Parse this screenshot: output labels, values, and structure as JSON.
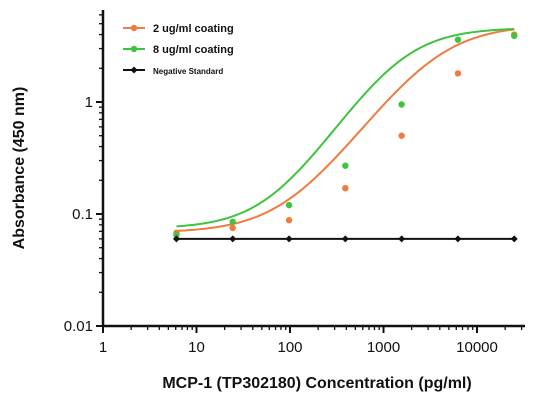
{
  "chart_data": {
    "type": "scatter",
    "xlabel": "MCP-1 (TP302180) Concentration (pg/ml)",
    "ylabel": "Absorbance (450 nm)",
    "xscale": "log",
    "yscale": "log",
    "xlim": [
      1,
      30000
    ],
    "ylim": [
      0.01,
      6
    ],
    "x_ticks": [
      1,
      10,
      100,
      1000,
      10000
    ],
    "x_tick_labels": [
      "1",
      "10",
      "100",
      "1000",
      "10000"
    ],
    "y_ticks": [
      0.01,
      0.1,
      1
    ],
    "y_tick_labels": [
      "0.01",
      "0.1",
      "1"
    ],
    "legend_position": "top-left",
    "series": [
      {
        "name": "2 ug/ml coating",
        "color": "#f07b3f",
        "marker": "dot",
        "points": [
          {
            "x": 6.1,
            "y": 0.068
          },
          {
            "x": 24.4,
            "y": 0.075
          },
          {
            "x": 97.7,
            "y": 0.088
          },
          {
            "x": 390.6,
            "y": 0.17
          },
          {
            "x": 1562.5,
            "y": 0.5
          },
          {
            "x": 6250,
            "y": 1.8
          },
          {
            "x": 25000,
            "y": 4.0
          }
        ],
        "curve": {
          "bottom": 0.068,
          "top": 4.9,
          "ec50": 3600,
          "hill": 1.18
        }
      },
      {
        "name": "8 ug/ml coating",
        "color": "#3ec43e",
        "marker": "dot",
        "points": [
          {
            "x": 6.1,
            "y": 0.065
          },
          {
            "x": 24.4,
            "y": 0.085
          },
          {
            "x": 97.7,
            "y": 0.12
          },
          {
            "x": 390.6,
            "y": 0.27
          },
          {
            "x": 1562.5,
            "y": 0.95
          },
          {
            "x": 6250,
            "y": 3.6
          },
          {
            "x": 25000,
            "y": 3.9
          }
        ],
        "curve": {
          "bottom": 0.074,
          "top": 4.6,
          "ec50": 1500,
          "hill": 1.3
        }
      },
      {
        "name": "Negative Standard",
        "color": "#111111",
        "marker": "diamond",
        "points": [
          {
            "x": 6.1,
            "y": 0.06
          },
          {
            "x": 24.4,
            "y": 0.06
          },
          {
            "x": 97.7,
            "y": 0.06
          },
          {
            "x": 390.6,
            "y": 0.06
          },
          {
            "x": 1562.5,
            "y": 0.06
          },
          {
            "x": 6250,
            "y": 0.06
          },
          {
            "x": 25000,
            "y": 0.06
          }
        ]
      }
    ]
  }
}
